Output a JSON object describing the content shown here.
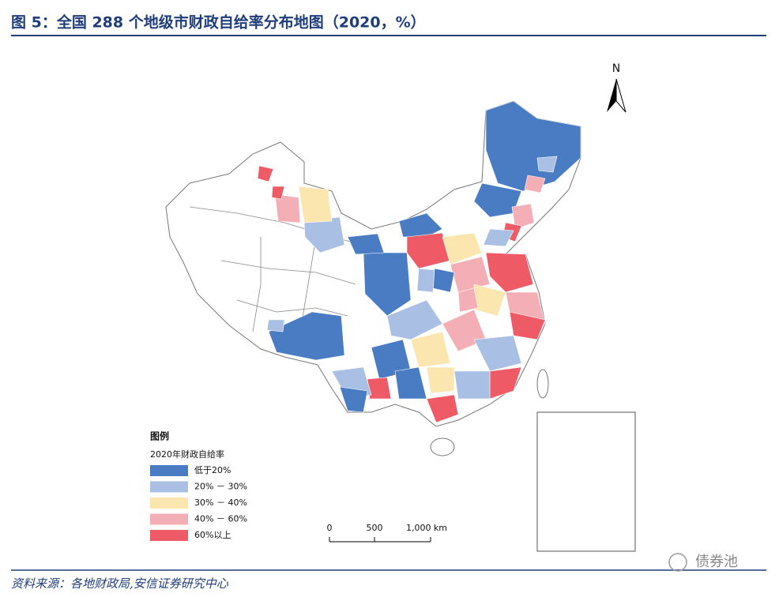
{
  "header": {
    "title": "图 5：全国 288 个地级市财政自给率分布地图（2020，%）"
  },
  "map": {
    "north_label": "N",
    "legend": {
      "title": "图例",
      "subtitle": "2020年财政自给率",
      "items": [
        {
          "label": "低于20%",
          "color": "#4a7cc4"
        },
        {
          "label": "20% － 30%",
          "color": "#a9bfe3"
        },
        {
          "label": "30% － 40%",
          "color": "#fbe6b0"
        },
        {
          "label": "40% － 60%",
          "color": "#f4aeb5"
        },
        {
          "label": "60%以上",
          "color": "#ee5b67"
        }
      ]
    },
    "scale_bar": {
      "labels": [
        "0",
        "500",
        "1,000 km"
      ]
    }
  },
  "footer": {
    "source": "资料来源：各地财政局,安信证券研究中心",
    "watermark": "债券池"
  }
}
